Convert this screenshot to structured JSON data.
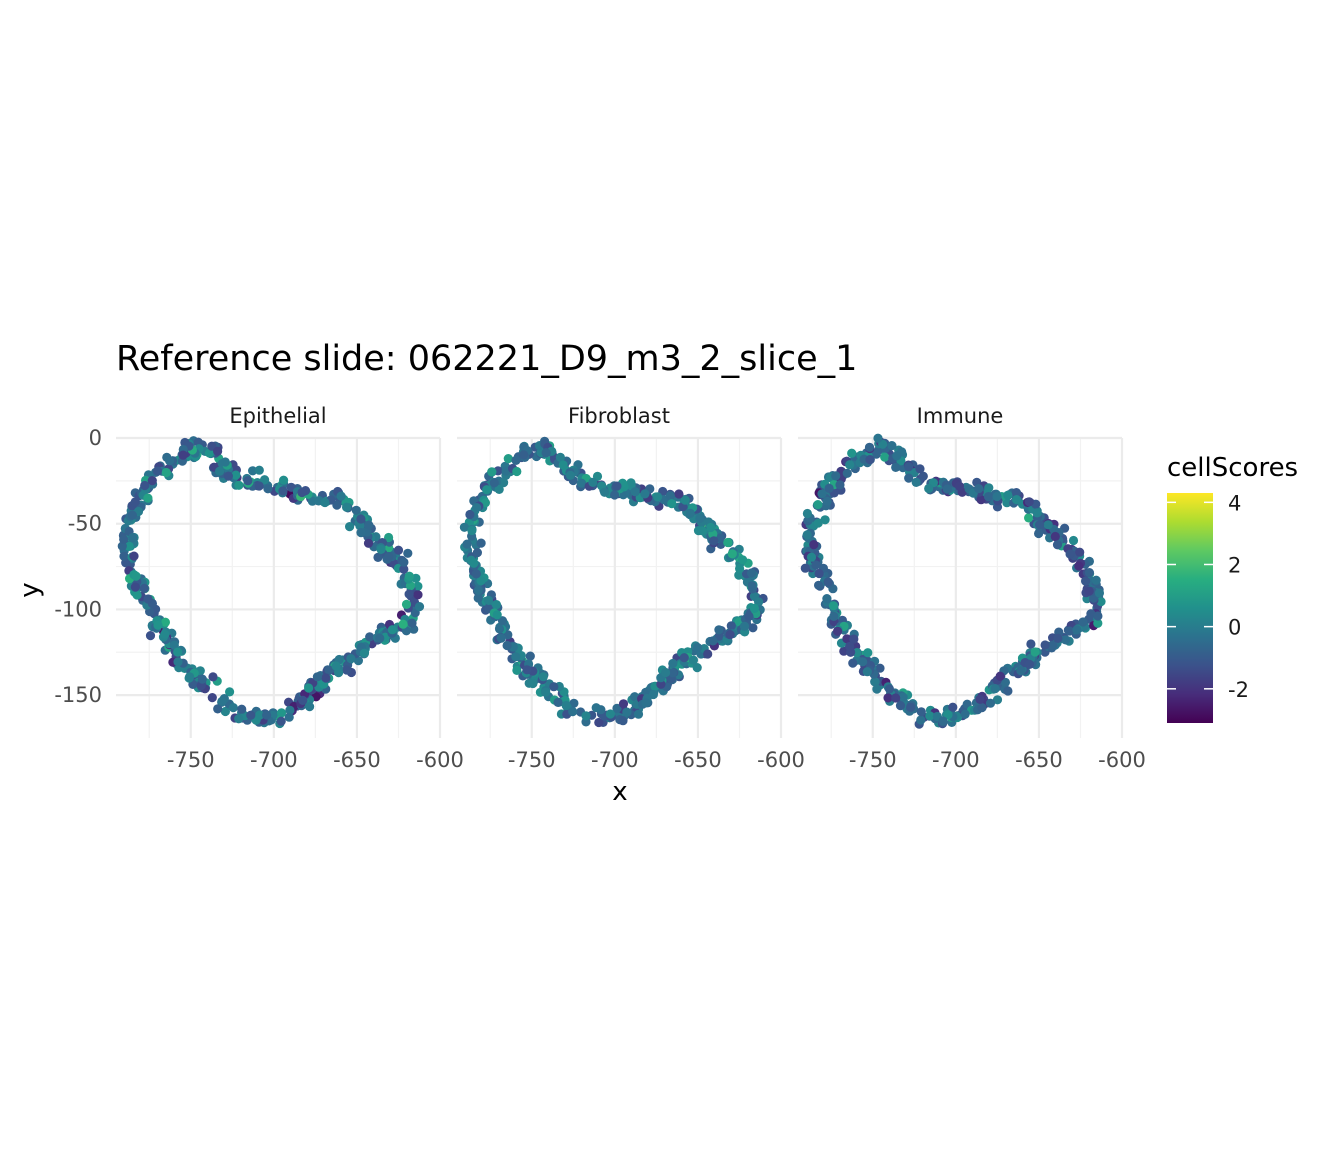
{
  "chart_data": {
    "type": "scatter",
    "title": "Reference slide: 062221_D9_m3_2_slice_1",
    "xlabel": "x",
    "ylabel": "y",
    "facets": [
      "Epithelial",
      "Fibroblast",
      "Immune"
    ],
    "xlim": [
      -795,
      -600
    ],
    "ylim": [
      -175,
      0
    ],
    "x_ticks": [
      {
        "value": -750,
        "label": "-750"
      },
      {
        "value": -700,
        "label": "-700"
      },
      {
        "value": -650,
        "label": "-650"
      },
      {
        "value": -600,
        "label": "-600"
      }
    ],
    "y_ticks": [
      {
        "value": 0,
        "label": "0"
      },
      {
        "value": -50,
        "label": "-50"
      },
      {
        "value": -100,
        "label": "-100"
      },
      {
        "value": -150,
        "label": "-150"
      }
    ],
    "grid": true,
    "legend": {
      "title": "cellScores",
      "position": "right",
      "colormap": "viridis",
      "range": [
        -3.1,
        4.3
      ],
      "ticks": [
        {
          "value": 4,
          "label": "4"
        },
        {
          "value": 2,
          "label": "2"
        },
        {
          "value": 0,
          "label": "0"
        },
        {
          "value": -2,
          "label": "-2"
        }
      ]
    },
    "outline": [
      [
        -748,
        -5
      ],
      [
        -740,
        -6
      ],
      [
        -733,
        -15
      ],
      [
        -722,
        -24
      ],
      [
        -705,
        -28
      ],
      [
        -690,
        -31
      ],
      [
        -675,
        -35
      ],
      [
        -660,
        -36
      ],
      [
        -650,
        -47
      ],
      [
        -640,
        -57
      ],
      [
        -628,
        -68
      ],
      [
        -620,
        -80
      ],
      [
        -615,
        -92
      ],
      [
        -618,
        -106
      ],
      [
        -630,
        -112
      ],
      [
        -645,
        -122
      ],
      [
        -660,
        -132
      ],
      [
        -675,
        -145
      ],
      [
        -685,
        -155
      ],
      [
        -700,
        -163
      ],
      [
        -715,
        -163
      ],
      [
        -730,
        -155
      ],
      [
        -745,
        -142
      ],
      [
        -758,
        -128
      ],
      [
        -768,
        -112
      ],
      [
        -775,
        -97
      ],
      [
        -782,
        -82
      ],
      [
        -787,
        -66
      ],
      [
        -785,
        -48
      ],
      [
        -778,
        -30
      ],
      [
        -765,
        -17
      ]
    ],
    "score_stats": {
      "Epithelial": {
        "mean": -0.4,
        "spread": 1.4
      },
      "Fibroblast": {
        "mean": -0.3,
        "spread": 1.2
      },
      "Immune": {
        "mean": -0.6,
        "spread": 1.3
      }
    }
  }
}
